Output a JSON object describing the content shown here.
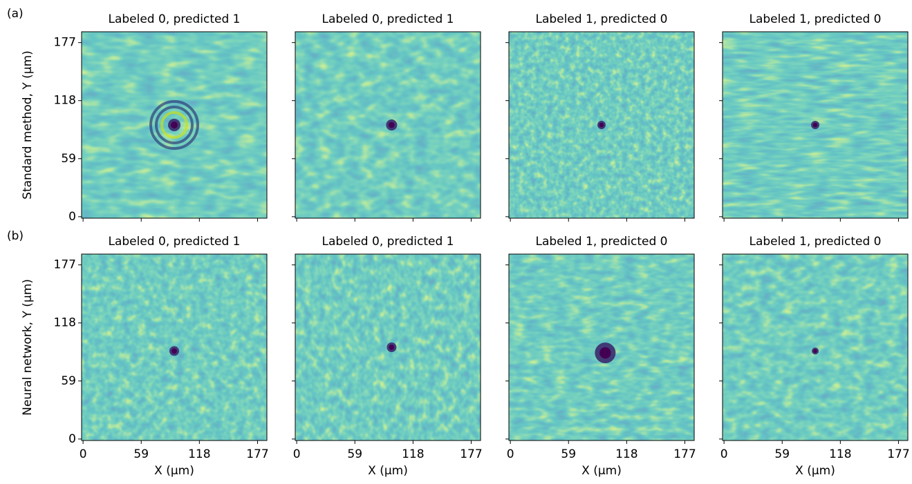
{
  "chart_data": [
    {
      "type": "image",
      "label": "(a)",
      "title": "Labeled 0, predicted 1",
      "ylabel": "Standard method, Y (μm)",
      "xlim": [
        -1.5,
        186.5
      ],
      "ylim": [
        -1.5,
        188
      ],
      "xticks": [
        0,
        59,
        118,
        177
      ],
      "yticks": [
        0,
        59,
        118,
        177
      ]
    },
    {
      "type": "image",
      "title": "Labeled 0, predicted 1",
      "xlim": [
        -1.5,
        186.5
      ],
      "ylim": [
        -1.5,
        188
      ],
      "xticks": [
        0,
        59,
        118,
        177
      ],
      "yticks": [
        0,
        59,
        118,
        177
      ]
    },
    {
      "type": "image",
      "title": "Labeled 1, predicted 0",
      "xlim": [
        -1.5,
        186.5
      ],
      "ylim": [
        -1.5,
        188
      ],
      "xticks": [
        0,
        59,
        118,
        177
      ],
      "yticks": [
        0,
        59,
        118,
        177
      ]
    },
    {
      "type": "image",
      "title": "Labeled 1, predicted 0",
      "xlim": [
        -1.5,
        186.5
      ],
      "ylim": [
        -1.5,
        188
      ],
      "xticks": [
        0,
        59,
        118,
        177
      ],
      "yticks": [
        0,
        59,
        118,
        177
      ]
    },
    {
      "type": "image",
      "label": "(b)",
      "title": "Labeled 0, predicted 1",
      "ylabel": "Neural network, Y (μm)",
      "xlabel": "X (μm)",
      "xlim": [
        -1.5,
        186.5
      ],
      "ylim": [
        -1.5,
        188
      ],
      "xticks": [
        0,
        59,
        118,
        177
      ],
      "yticks": [
        0,
        59,
        118,
        177
      ]
    },
    {
      "type": "image",
      "title": "Labeled 0, predicted 1",
      "xlabel": "X (μm)",
      "xlim": [
        -1.5,
        186.5
      ],
      "ylim": [
        -1.5,
        188
      ],
      "xticks": [
        0,
        59,
        118,
        177
      ],
      "yticks": [
        0,
        59,
        118,
        177
      ]
    },
    {
      "type": "image",
      "title": "Labeled 1, predicted 0",
      "xlabel": "X (μm)",
      "xlim": [
        -1.5,
        186.5
      ],
      "ylim": [
        -1.5,
        188
      ],
      "xticks": [
        0,
        59,
        118,
        177
      ],
      "yticks": [
        0,
        59,
        118,
        177
      ]
    },
    {
      "type": "image",
      "title": "Labeled 1, predicted 0",
      "xlabel": "X (μm)",
      "xlim": [
        -1.5,
        186.5
      ],
      "ylim": [
        -1.5,
        188
      ],
      "xticks": [
        0,
        59,
        118,
        177
      ],
      "yticks": [
        0,
        59,
        118,
        177
      ]
    }
  ]
}
